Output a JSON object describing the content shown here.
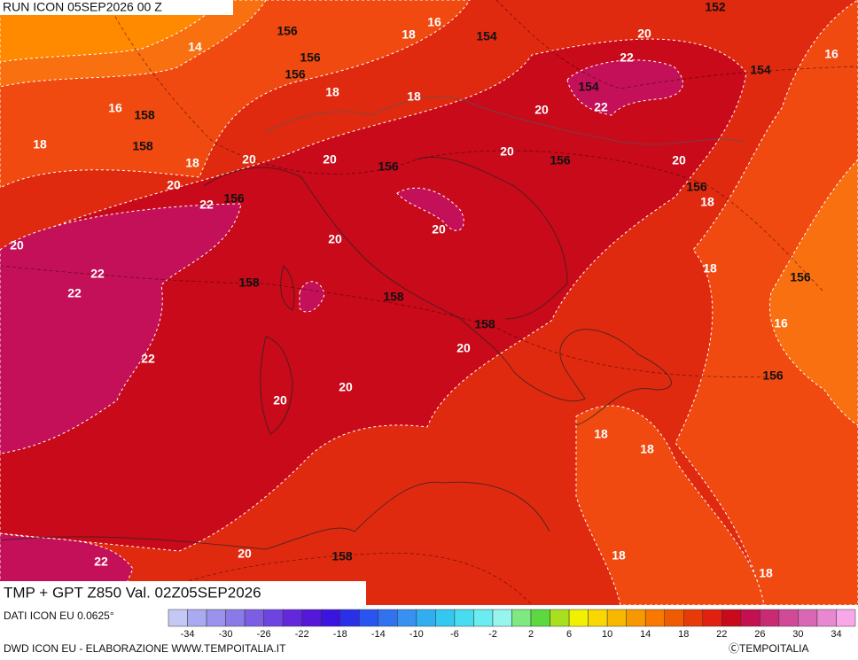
{
  "header": {
    "run": "RUN ICON 05SEP2026 00 Z"
  },
  "title": "TMP + GPT Z850 Val. 02Z05SEP2026",
  "footer": {
    "source": "DATI ICON EU 0.0625°",
    "credit": "DWD ICON EU - ELABORAZIONE WWW.TEMPOITALIA.IT",
    "copyright": "ⒸTEMPOITALIA"
  },
  "map": {
    "temperature_labels": [
      16,
      14,
      18,
      20,
      22,
      16,
      16,
      18,
      18,
      20,
      22,
      18,
      18,
      20,
      20,
      20,
      20,
      20,
      22,
      18,
      20,
      20,
      20,
      22,
      22,
      18,
      16,
      22,
      20,
      20,
      20,
      18,
      18,
      22,
      20,
      18,
      18
    ],
    "geopotential_labels": [
      152,
      156,
      154,
      156,
      156,
      154,
      154,
      158,
      158,
      156,
      156,
      156,
      156,
      158,
      158,
      156,
      158,
      156,
      158
    ]
  },
  "colorbar": {
    "colors": [
      "#c4c8f4",
      "#aaaaf0",
      "#9a92ec",
      "#8a7ae8",
      "#7c5ee4",
      "#6e44e0",
      "#6428dc",
      "#5418d8",
      "#3c14e0",
      "#2a30e8",
      "#2a54f0",
      "#3072f0",
      "#3890f0",
      "#30aef0",
      "#34c8f0",
      "#48dcf0",
      "#6aecf0",
      "#96f6ee",
      "#80e880",
      "#5cd840",
      "#a8e020",
      "#f0f000",
      "#f8d800",
      "#f8b800",
      "#f89800",
      "#f87800",
      "#f05a00",
      "#e83a08",
      "#e02010",
      "#c80a1a",
      "#c41050",
      "#c82a74",
      "#d04a98",
      "#d868b4",
      "#e888d0",
      "#f8a8e8"
    ],
    "ticks": [
      -34,
      -30,
      -26,
      -22,
      -18,
      -14,
      -10,
      -6,
      -2,
      2,
      6,
      10,
      14,
      18,
      22,
      26,
      30,
      34
    ]
  }
}
